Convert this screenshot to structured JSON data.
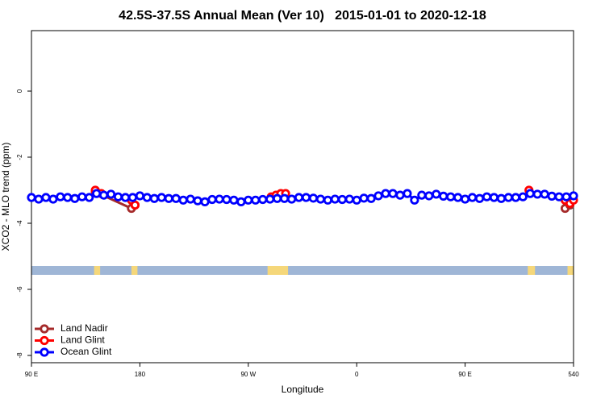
{
  "chart_data": {
    "type": "line",
    "title": "42.5S-37.5S Annual Mean (Ver 10)   2015-01-01 to 2020-12-18",
    "x_label": "Longitude",
    "y_label": "XCO2 - MLO trend (ppm)",
    "xlim": [
      90,
      540
    ],
    "ylim": [
      -8.22,
      1.83
    ],
    "xticks": [
      {
        "value": 90,
        "label": "90 E"
      },
      180,
      {
        "value": 270,
        "label": "90 W"
      },
      {
        "value": 360,
        "label": "0"
      },
      {
        "value": 450,
        "label": "90 E"
      },
      540
    ],
    "yticks": [
      0,
      -2,
      -4,
      -6,
      -8
    ],
    "legend": "bottom left",
    "land_regions": [
      [
        142,
        147
      ],
      [
        173,
        178
      ],
      [
        286,
        303
      ],
      [
        502,
        508
      ],
      [
        535,
        540
      ]
    ],
    "series": [
      {
        "name": "Land Nadir",
        "color": "#a52a2a",
        "x": [
          143,
          173,
          176,
          null,
          533,
          537
        ],
        "values": [
          -3.05,
          -3.55,
          -3.45,
          null,
          -3.55,
          -3.45
        ]
      },
      {
        "name": "Land Glint",
        "color": "#ff0000",
        "x": [
          143,
          148,
          null,
          173,
          176,
          null,
          289,
          293,
          297,
          301,
          null,
          503,
          null,
          533,
          537,
          540
        ],
        "values": [
          -3.0,
          -3.1,
          null,
          -3.3,
          -3.45,
          null,
          -3.2,
          -3.15,
          -3.1,
          -3.1,
          null,
          -3.0,
          null,
          -3.3,
          -3.4,
          -3.3
        ]
      },
      {
        "name": "Ocean Glint",
        "color": "#0000ff",
        "x": [
          90,
          96,
          102,
          108,
          114,
          120,
          126,
          132,
          138,
          144,
          150,
          156,
          162,
          168,
          174,
          180,
          186,
          192,
          198,
          204,
          210,
          216,
          222,
          228,
          234,
          240,
          246,
          252,
          258,
          264,
          270,
          276,
          282,
          288,
          294,
          300,
          306,
          312,
          318,
          324,
          330,
          336,
          342,
          348,
          354,
          360,
          366,
          372,
          378,
          384,
          390,
          396,
          402,
          408,
          414,
          420,
          426,
          432,
          438,
          444,
          450,
          456,
          462,
          468,
          474,
          480,
          486,
          492,
          498,
          504,
          510,
          516,
          522,
          528,
          534,
          540
        ],
        "values": [
          -3.22,
          -3.27,
          -3.22,
          -3.27,
          -3.2,
          -3.22,
          -3.25,
          -3.2,
          -3.22,
          -3.1,
          -3.15,
          -3.12,
          -3.2,
          -3.22,
          -3.22,
          -3.17,
          -3.22,
          -3.25,
          -3.22,
          -3.25,
          -3.25,
          -3.3,
          -3.27,
          -3.32,
          -3.35,
          -3.28,
          -3.27,
          -3.28,
          -3.3,
          -3.35,
          -3.3,
          -3.3,
          -3.28,
          -3.27,
          -3.25,
          -3.25,
          -3.27,
          -3.22,
          -3.22,
          -3.24,
          -3.27,
          -3.3,
          -3.27,
          -3.28,
          -3.27,
          -3.3,
          -3.24,
          -3.25,
          -3.17,
          -3.1,
          -3.1,
          -3.15,
          -3.1,
          -3.3,
          -3.15,
          -3.17,
          -3.12,
          -3.18,
          -3.2,
          -3.22,
          -3.27,
          -3.22,
          -3.25,
          -3.2,
          -3.22,
          -3.25,
          -3.22,
          -3.22,
          -3.2,
          -3.1,
          -3.12,
          -3.12,
          -3.18,
          -3.2,
          -3.2,
          -3.17
        ]
      }
    ]
  }
}
